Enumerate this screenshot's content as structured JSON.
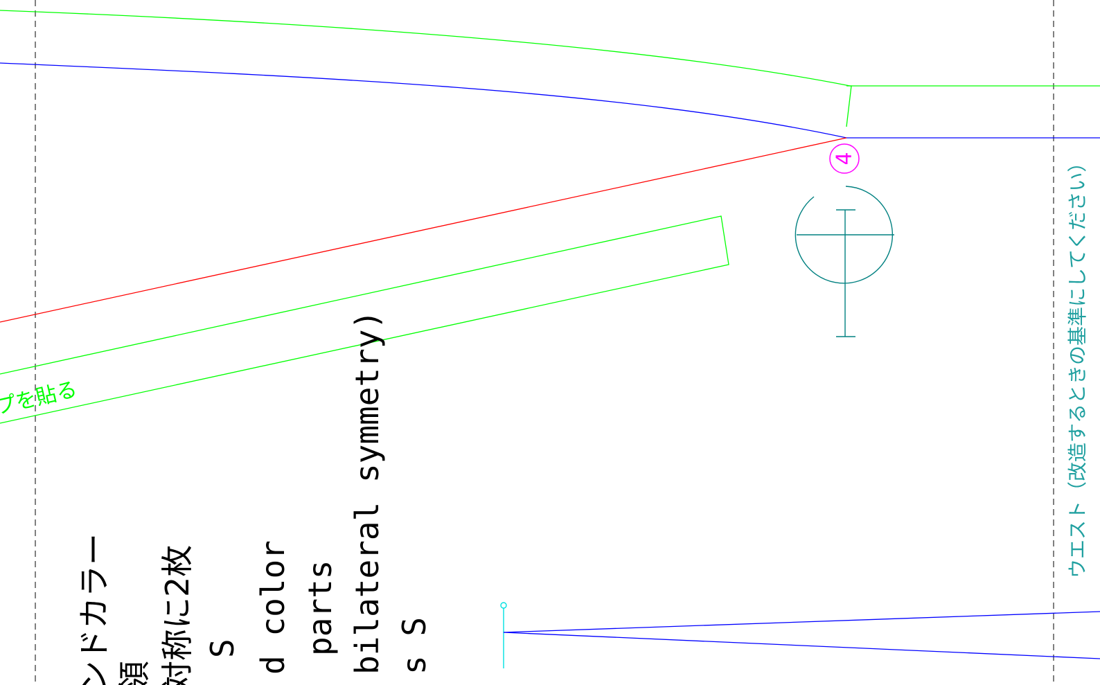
{
  "colors": {
    "background": "#ffffff",
    "green": "#00ff00",
    "blue": "#0000ff",
    "red": "#ff0000",
    "magenta": "#ff00ff",
    "teal": "#008080",
    "cyan": "#00e0e0",
    "black": "#000000",
    "guide": "#666666"
  },
  "annotations": {
    "tape_note": "プを貼る",
    "waist_note": "ウエスト（改造するときの基準にしてください）",
    "piece_marker": "4"
  },
  "label_block": {
    "lines": [
      "ンドカラー",
      "領",
      "対称に2枚",
      "S",
      "d color",
      "parts",
      "bilateral symmetry)",
      "s S"
    ]
  },
  "symbols": [
    {
      "name": "piece-number-marker",
      "label": "piece 4"
    },
    {
      "name": "grainline-symbol",
      "label": "grain"
    },
    {
      "name": "notch-pin-symbol",
      "label": "pin"
    }
  ]
}
